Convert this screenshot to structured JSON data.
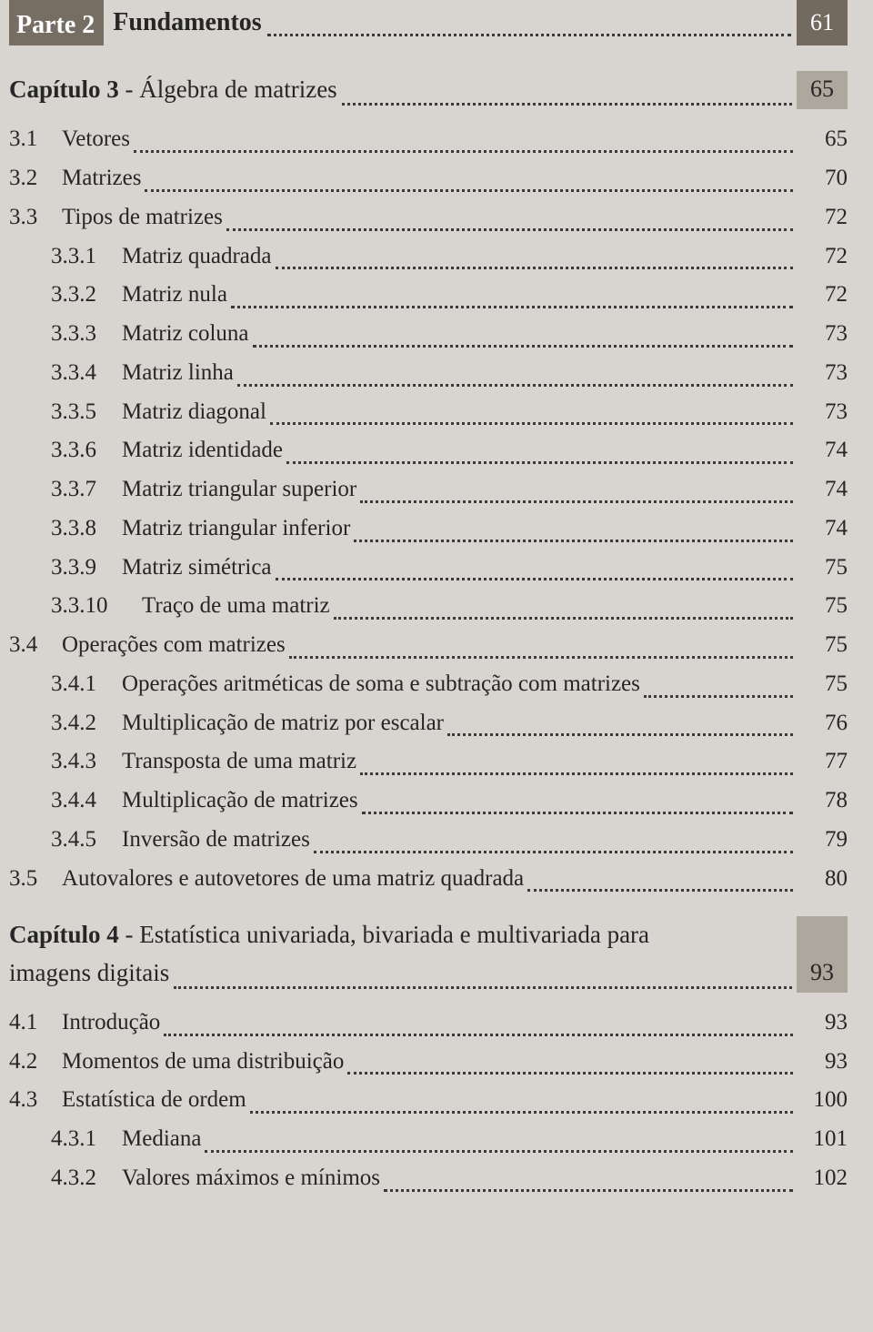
{
  "colors": {
    "page_bg": "#d8d5d0",
    "text": "#262626",
    "part_box_bg": "#766d63",
    "part_box_text": "#ffffff",
    "part_page_bg": "#72695f",
    "chapter_page_bg": "#aea79d",
    "dot_color": "#3a3a3a"
  },
  "typography": {
    "body_font": "Georgia / Times New Roman serif",
    "body_size_pt": 19,
    "header_size_pt": 21,
    "line_height": 1.55
  },
  "part": {
    "label": "Parte 2",
    "title": "Fundamentos",
    "page": "61"
  },
  "chapter3": {
    "label": "Capítulo 3",
    "sep": " - ",
    "title": "Álgebra de matrizes",
    "page": "65"
  },
  "toc3": [
    {
      "level": 1,
      "num": "3.1",
      "text": "Vetores",
      "page": "65"
    },
    {
      "level": 1,
      "num": "3.2",
      "text": "Matrizes",
      "page": "70"
    },
    {
      "level": 1,
      "num": "3.3",
      "text": "Tipos de matrizes",
      "page": "72"
    },
    {
      "level": 2,
      "num": "3.3.1",
      "text": "Matriz quadrada",
      "page": "72"
    },
    {
      "level": 2,
      "num": "3.3.2",
      "text": "Matriz nula",
      "page": "72"
    },
    {
      "level": 2,
      "num": "3.3.3",
      "text": "Matriz coluna",
      "page": "73"
    },
    {
      "level": 2,
      "num": "3.3.4",
      "text": "Matriz linha",
      "page": "73"
    },
    {
      "level": 2,
      "num": "3.3.5",
      "text": "Matriz diagonal",
      "page": "73"
    },
    {
      "level": 2,
      "num": "3.3.6",
      "text": "Matriz identidade",
      "page": "74"
    },
    {
      "level": 2,
      "num": "3.3.7",
      "text": "Matriz triangular superior",
      "page": "74"
    },
    {
      "level": 2,
      "num": "3.3.8",
      "text": "Matriz triangular inferior",
      "page": "74"
    },
    {
      "level": 2,
      "num": "3.3.9",
      "text": "Matriz simétrica",
      "page": "75"
    },
    {
      "level": 2,
      "wide": true,
      "num": "3.3.10",
      "text": "Traço de uma matriz",
      "page": "75"
    },
    {
      "level": 1,
      "num": "3.4",
      "text": "Operações com matrizes",
      "page": "75"
    },
    {
      "level": 2,
      "num": "3.4.1",
      "text": "Operações aritméticas de soma e subtração com matrizes",
      "page": "75"
    },
    {
      "level": 2,
      "num": "3.4.2",
      "text": "Multiplicação de matriz por escalar",
      "page": "76"
    },
    {
      "level": 2,
      "num": "3.4.3",
      "text": "Transposta de uma matriz",
      "page": "77"
    },
    {
      "level": 2,
      "num": "3.4.4",
      "text": "Multiplicação de matrizes",
      "page": "78"
    },
    {
      "level": 2,
      "num": "3.4.5",
      "text": "Inversão de matrizes",
      "page": "79"
    },
    {
      "level": 1,
      "num": "3.5",
      "text": "Autovalores e autovetores de uma matriz quadrada",
      "page": "80"
    }
  ],
  "chapter4": {
    "label": "Capítulo 4",
    "sep": " - ",
    "title_line1": "Estatística univariada, bivariada e multivariada para",
    "title_line2": "imagens digitais",
    "page": "93"
  },
  "toc4": [
    {
      "level": 1,
      "num": "4.1",
      "text": "Introdução",
      "page": "93"
    },
    {
      "level": 1,
      "num": "4.2",
      "text": "Momentos de uma distribuição",
      "page": "93"
    },
    {
      "level": 1,
      "num": "4.3",
      "text": "Estatística de ordem",
      "page": "100"
    },
    {
      "level": 2,
      "num": "4.3.1",
      "text": "Mediana",
      "page": "101"
    },
    {
      "level": 2,
      "num": "4.3.2",
      "text": "Valores máximos e mínimos",
      "page": "102"
    }
  ]
}
